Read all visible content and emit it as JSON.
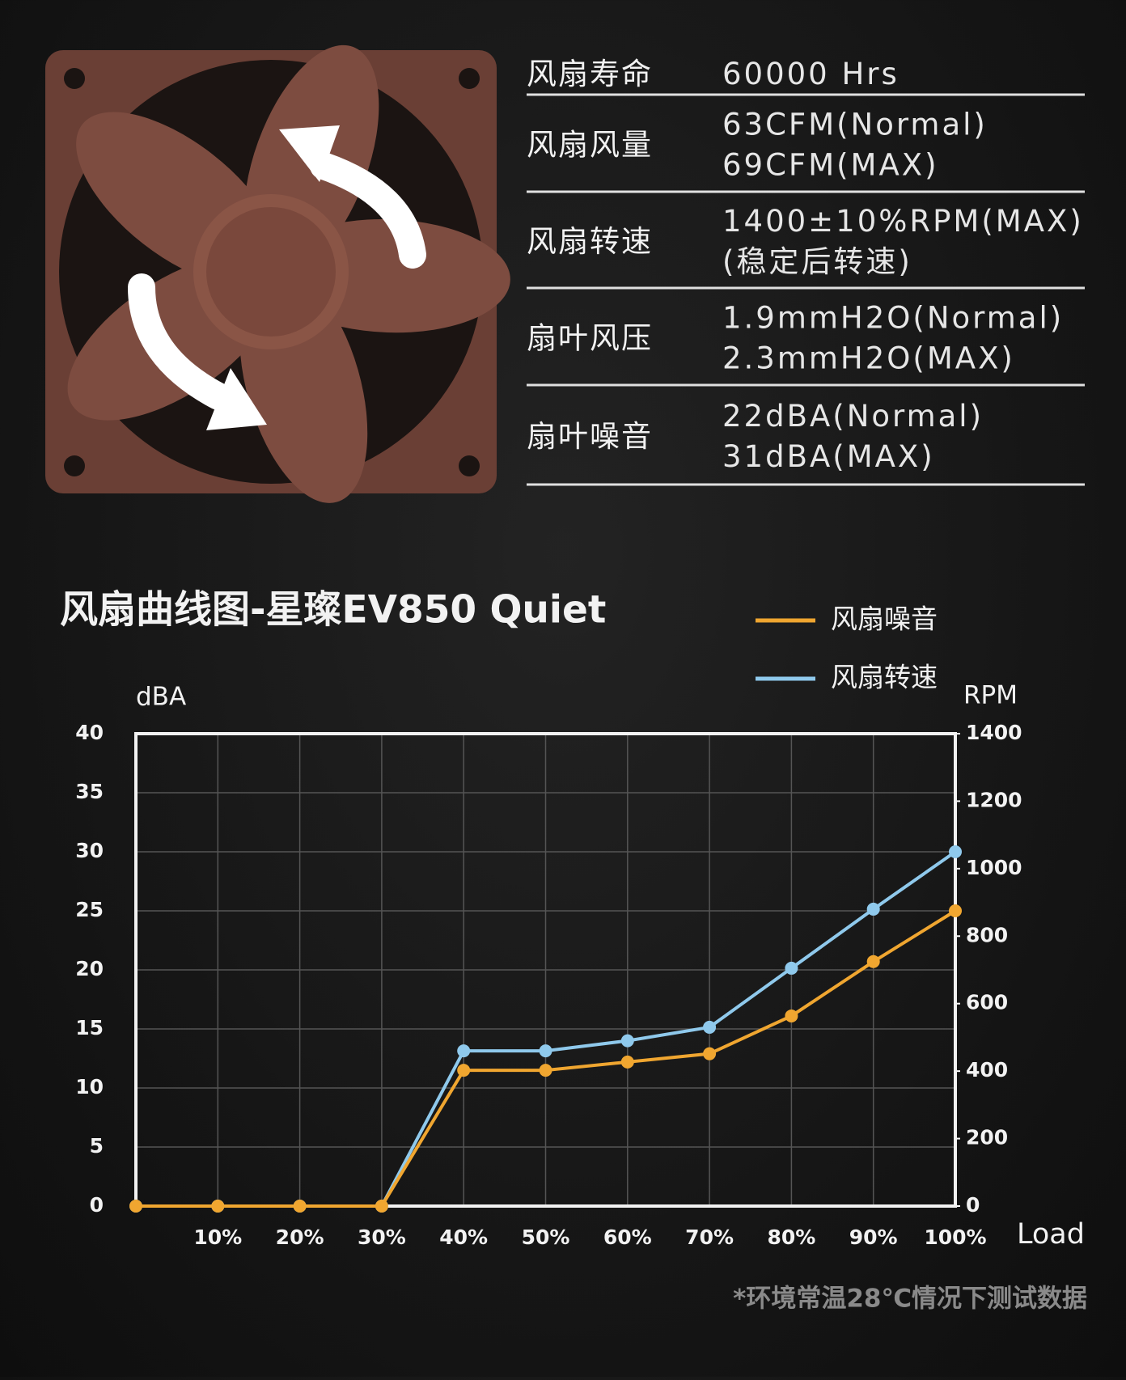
{
  "specs": {
    "rows": [
      {
        "label": "风扇寿命",
        "lines": [
          "60000 Hrs"
        ]
      },
      {
        "label": "风扇风量",
        "lines": [
          "63CFM(Normal)",
          "69CFM(MAX)"
        ]
      },
      {
        "label": "风扇转速",
        "lines": [
          "1400±10%RPM(MAX)",
          "(稳定后转速)"
        ]
      },
      {
        "label": "扇叶风压",
        "lines": [
          "1.9mmH2O(Normal)",
          "2.3mmH2O(MAX)"
        ]
      },
      {
        "label": "扇叶噪音",
        "lines": [
          "22dBA(Normal)",
          "31dBA(MAX)"
        ]
      }
    ]
  },
  "chart_data": {
    "type": "line",
    "title": "风扇曲线图-星璨EV850 Quiet",
    "x_label": "Load",
    "y_label": "dBA",
    "y2_label": "RPM",
    "categories": [
      null,
      "10%",
      "20%",
      "30%",
      "40%",
      "50%",
      "60%",
      "70%",
      "80%",
      "90%",
      "100%"
    ],
    "series": [
      {
        "name": "风扇噪音",
        "color": "#f0a630",
        "values": [
          0,
          0,
          0,
          0,
          11.5,
          11.5,
          12.2,
          12.9,
          16.1,
          20.7,
          25
        ]
      },
      {
        "name": "风扇转速",
        "color": "#8fc9ec",
        "axis": "y2",
        "values": [
          0,
          0,
          0,
          0,
          460,
          460,
          490,
          530,
          705,
          880,
          1050
        ]
      }
    ],
    "ylim": [
      0,
      40
    ],
    "yticks": [
      0,
      5,
      10,
      15,
      20,
      25,
      30,
      35,
      40
    ],
    "y2lim": [
      0,
      1400
    ],
    "y2ticks": [
      0,
      200,
      400,
      600,
      800,
      1000,
      1200,
      1400
    ],
    "grid": true
  },
  "footnote": "*环境常温28℃情况下测试数据"
}
